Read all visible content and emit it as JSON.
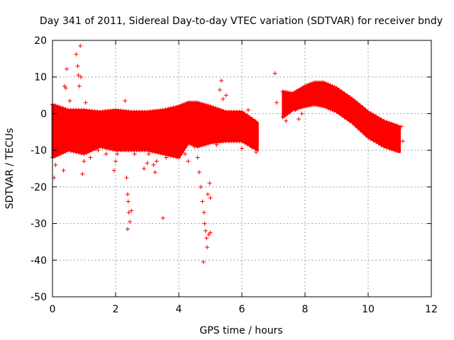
{
  "chart_data": {
    "type": "scatter",
    "title": "Day 341 of 2011, Sidereal Day-to-day VTEC variation (SDTVAR) for receiver bndy",
    "xlabel": "GPS time / hours",
    "ylabel": "SDTVAR / TECUs",
    "xlim": [
      0,
      12
    ],
    "ylim": [
      -50,
      20
    ],
    "xticks": [
      0,
      2,
      4,
      6,
      8,
      10,
      12
    ],
    "yticks": [
      -50,
      -40,
      -30,
      -20,
      -10,
      0,
      10,
      20
    ],
    "marker": "+",
    "grid": true,
    "colors": {
      "series": "#ff0000",
      "grid": "#a0a0a0",
      "axis": "#000000"
    },
    "series": [
      {
        "name": "SDTVAR",
        "bands": [
          {
            "x": [
              0.0,
              0.5,
              1.0,
              1.5,
              2.0,
              2.5,
              3.0,
              3.5,
              4.0,
              4.3,
              4.6,
              5.0,
              5.5,
              6.0,
              6.5
            ],
            "upper": [
              2.5,
              1.0,
              1.0,
              0.5,
              1.0,
              0.5,
              0.5,
              1.0,
              2.0,
              3.0,
              3.0,
              2.0,
              0.5,
              0.5,
              -2.5
            ],
            "lower": [
              -12.0,
              -10.0,
              -11.0,
              -9.0,
              -10.0,
              -10.0,
              -10.0,
              -11.0,
              -12.0,
              -8.0,
              -9.0,
              -8.0,
              -7.5,
              -7.5,
              -10.0
            ]
          },
          {
            "x": [
              7.3,
              7.6,
              8.0,
              8.3,
              8.6,
              9.0,
              9.5,
              10.0,
              10.5,
              11.0
            ],
            "upper": [
              6.0,
              5.5,
              7.5,
              8.5,
              8.5,
              7.0,
              4.0,
              0.5,
              -2.0,
              -3.5
            ],
            "lower": [
              -1.0,
              1.0,
              2.0,
              2.5,
              2.0,
              0.5,
              -2.5,
              -6.5,
              -9.0,
              -10.5
            ]
          }
        ],
        "scatter": [
          [
            0.05,
            -17.5
          ],
          [
            0.1,
            -14.0
          ],
          [
            0.12,
            -11.0
          ],
          [
            0.2,
            -5.0
          ],
          [
            0.25,
            0.5
          ],
          [
            0.3,
            -8.0
          ],
          [
            0.35,
            -15.5
          ],
          [
            0.38,
            7.5
          ],
          [
            0.42,
            7.0
          ],
          [
            0.45,
            12.2
          ],
          [
            0.55,
            3.5
          ],
          [
            0.6,
            -2.0
          ],
          [
            0.75,
            16.2
          ],
          [
            0.8,
            13.0
          ],
          [
            0.82,
            10.5
          ],
          [
            0.85,
            7.5
          ],
          [
            0.88,
            18.5
          ],
          [
            0.9,
            10.0
          ],
          [
            0.95,
            -16.5
          ],
          [
            1.0,
            -13.0
          ],
          [
            1.05,
            3.0
          ],
          [
            1.2,
            -12.0
          ],
          [
            1.3,
            -9.0
          ],
          [
            1.45,
            -10.0
          ],
          [
            1.7,
            -11.0
          ],
          [
            1.95,
            -15.5
          ],
          [
            2.0,
            -13.0
          ],
          [
            2.05,
            -11.0
          ],
          [
            2.15,
            -4.0
          ],
          [
            2.2,
            0.0
          ],
          [
            2.3,
            3.5
          ],
          [
            2.35,
            -17.5
          ],
          [
            2.38,
            -22.0
          ],
          [
            2.4,
            -24.0
          ],
          [
            2.42,
            -27.0
          ],
          [
            2.45,
            -29.5
          ],
          [
            2.38,
            -31.5
          ],
          [
            2.5,
            -26.5
          ],
          [
            2.6,
            -11.0
          ],
          [
            2.75,
            0.5
          ],
          [
            2.9,
            -15.0
          ],
          [
            3.0,
            -13.5
          ],
          [
            3.05,
            -11.0
          ],
          [
            3.2,
            -14.0
          ],
          [
            3.25,
            -16.0
          ],
          [
            3.3,
            -13.0
          ],
          [
            3.5,
            -28.5
          ],
          [
            3.6,
            -12.0
          ],
          [
            3.75,
            -10.0
          ],
          [
            3.9,
            -9.0
          ],
          [
            4.05,
            -10.5
          ],
          [
            4.2,
            -11.0
          ],
          [
            4.3,
            -13.0
          ],
          [
            4.4,
            -5.0
          ],
          [
            4.5,
            -9.0
          ],
          [
            4.6,
            -12.0
          ],
          [
            4.65,
            -16.0
          ],
          [
            4.7,
            -20.0
          ],
          [
            4.75,
            -24.0
          ],
          [
            4.8,
            -27.0
          ],
          [
            4.82,
            -30.0
          ],
          [
            4.85,
            -32.0
          ],
          [
            4.88,
            -34.0
          ],
          [
            4.9,
            -36.5
          ],
          [
            4.78,
            -40.5
          ],
          [
            4.95,
            -33.0
          ],
          [
            5.0,
            -32.5
          ],
          [
            4.92,
            -22.0
          ],
          [
            4.98,
            -19.0
          ],
          [
            5.0,
            -23.0
          ],
          [
            5.1,
            -4.5
          ],
          [
            5.2,
            -8.5
          ],
          [
            5.3,
            6.5
          ],
          [
            5.35,
            9.0
          ],
          [
            5.4,
            4.0
          ],
          [
            5.5,
            5.0
          ],
          [
            5.6,
            -3.0
          ],
          [
            5.8,
            -1.0
          ],
          [
            6.0,
            -9.5
          ],
          [
            6.1,
            -6.0
          ],
          [
            6.2,
            1.0
          ],
          [
            6.3,
            -9.0
          ],
          [
            6.4,
            -5.0
          ],
          [
            6.45,
            -10.5
          ],
          [
            7.05,
            11.0
          ],
          [
            7.1,
            3.0
          ],
          [
            7.3,
            6.0
          ],
          [
            7.35,
            1.5
          ],
          [
            7.4,
            -2.0
          ],
          [
            7.5,
            4.0
          ],
          [
            7.6,
            3.0
          ],
          [
            7.7,
            1.0
          ],
          [
            7.8,
            -1.5
          ],
          [
            7.9,
            0.0
          ],
          [
            8.0,
            2.0
          ],
          [
            11.05,
            -3.5
          ],
          [
            11.1,
            -7.5
          ]
        ]
      }
    ]
  }
}
